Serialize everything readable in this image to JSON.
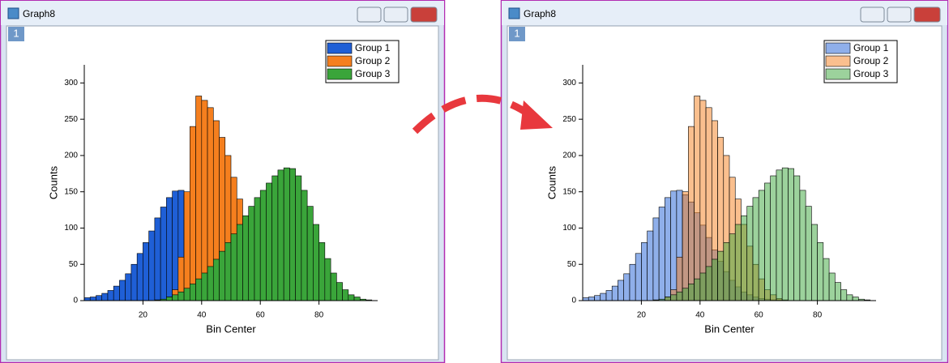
{
  "windows": [
    {
      "title": "Graph8",
      "tab": "1"
    },
    {
      "title": "Graph8",
      "tab": "1"
    }
  ],
  "chart_data": [
    {
      "type": "histogram",
      "x_label": "Bin Center",
      "y_label": "Counts",
      "xlim": [
        0,
        100
      ],
      "ylim": [
        0,
        325
      ],
      "xticks": [
        20,
        40,
        60,
        80
      ],
      "yticks": [
        0,
        50,
        100,
        150,
        200,
        250,
        300
      ],
      "legend": "top-right",
      "fill_opacity": 1,
      "bins": [
        0,
        2,
        4,
        6,
        8,
        10,
        12,
        14,
        16,
        18,
        20,
        22,
        24,
        26,
        28,
        30,
        32,
        34,
        36,
        38,
        40,
        42,
        44,
        46,
        48,
        50,
        52,
        54,
        56,
        58,
        60,
        62,
        64,
        66,
        68,
        70,
        72,
        74,
        76,
        78,
        80,
        82,
        84,
        86,
        88,
        90,
        92,
        94,
        96,
        98,
        100
      ],
      "series": [
        {
          "name": "Group 1",
          "color": "#1f5fd6",
          "values": [
            4,
            5,
            7,
            10,
            14,
            20,
            28,
            37,
            50,
            65,
            80,
            96,
            114,
            129,
            142,
            151,
            152,
            146,
            136,
            121,
            104,
            87,
            70,
            54,
            40,
            28,
            19,
            12,
            8,
            5,
            3,
            2,
            1,
            1,
            0,
            0,
            0,
            0,
            0,
            0,
            0,
            0,
            0,
            0,
            0,
            0,
            0,
            0,
            0,
            0
          ]
        },
        {
          "name": "Group 2",
          "color": "#f57f1e",
          "values": [
            0,
            0,
            0,
            0,
            0,
            0,
            0,
            0,
            0,
            0,
            0,
            0,
            0,
            0,
            5,
            15,
            60,
            150,
            240,
            282,
            276,
            266,
            248,
            225,
            200,
            170,
            140,
            105,
            75,
            50,
            30,
            15,
            8,
            3,
            1,
            0,
            0,
            0,
            0,
            0,
            0,
            0,
            0,
            0,
            0,
            0,
            0,
            0,
            0,
            0
          ]
        },
        {
          "name": "Group 3",
          "color": "#3aa53a",
          "values": [
            0,
            0,
            0,
            0,
            0,
            0,
            0,
            0,
            0,
            0,
            0,
            0,
            1,
            2,
            5,
            8,
            12,
            17,
            23,
            30,
            38,
            47,
            57,
            68,
            80,
            92,
            105,
            117,
            130,
            142,
            152,
            162,
            172,
            180,
            183,
            182,
            172,
            152,
            130,
            105,
            80,
            58,
            38,
            25,
            15,
            8,
            5,
            2,
            1,
            0
          ]
        }
      ]
    },
    {
      "type": "histogram",
      "x_label": "Bin Center",
      "y_label": "Counts",
      "xlim": [
        0,
        100
      ],
      "ylim": [
        0,
        325
      ],
      "xticks": [
        20,
        40,
        60,
        80
      ],
      "yticks": [
        0,
        50,
        100,
        150,
        200,
        250,
        300
      ],
      "legend": "top-right",
      "fill_opacity": 0.5,
      "bins": [
        0,
        2,
        4,
        6,
        8,
        10,
        12,
        14,
        16,
        18,
        20,
        22,
        24,
        26,
        28,
        30,
        32,
        34,
        36,
        38,
        40,
        42,
        44,
        46,
        48,
        50,
        52,
        54,
        56,
        58,
        60,
        62,
        64,
        66,
        68,
        70,
        72,
        74,
        76,
        78,
        80,
        82,
        84,
        86,
        88,
        90,
        92,
        94,
        96,
        98,
        100
      ],
      "series": [
        {
          "name": "Group 1",
          "color": "#1f5fd6",
          "values": [
            4,
            5,
            7,
            10,
            14,
            20,
            28,
            37,
            50,
            65,
            80,
            96,
            114,
            129,
            142,
            151,
            152,
            146,
            136,
            121,
            104,
            87,
            70,
            54,
            40,
            28,
            19,
            12,
            8,
            5,
            3,
            2,
            1,
            1,
            0,
            0,
            0,
            0,
            0,
            0,
            0,
            0,
            0,
            0,
            0,
            0,
            0,
            0,
            0,
            0
          ]
        },
        {
          "name": "Group 2",
          "color": "#f57f1e",
          "values": [
            0,
            0,
            0,
            0,
            0,
            0,
            0,
            0,
            0,
            0,
            0,
            0,
            0,
            0,
            5,
            15,
            60,
            150,
            240,
            282,
            276,
            266,
            248,
            225,
            200,
            170,
            140,
            105,
            75,
            50,
            30,
            15,
            8,
            3,
            1,
            0,
            0,
            0,
            0,
            0,
            0,
            0,
            0,
            0,
            0,
            0,
            0,
            0,
            0,
            0
          ]
        },
        {
          "name": "Group 3",
          "color": "#3aa53a",
          "values": [
            0,
            0,
            0,
            0,
            0,
            0,
            0,
            0,
            0,
            0,
            0,
            0,
            1,
            2,
            5,
            8,
            12,
            17,
            23,
            30,
            38,
            47,
            57,
            68,
            80,
            92,
            105,
            117,
            130,
            142,
            152,
            162,
            172,
            180,
            183,
            182,
            172,
            152,
            130,
            105,
            80,
            58,
            38,
            25,
            15,
            8,
            5,
            2,
            1,
            0
          ]
        }
      ]
    }
  ]
}
